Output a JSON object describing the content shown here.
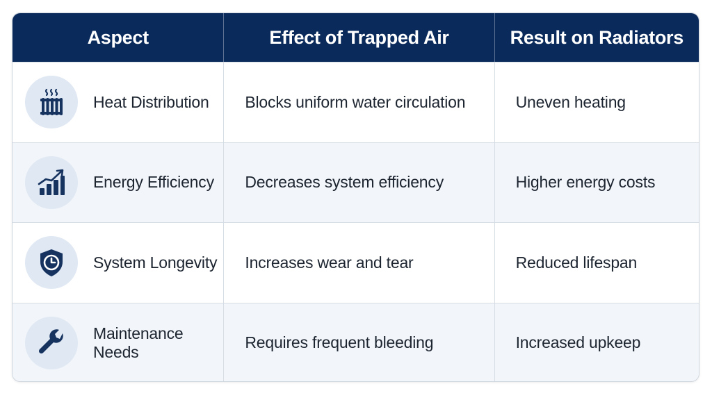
{
  "header": {
    "aspect": "Aspect",
    "effect": "Effect of Trapped Air",
    "result": "Result on Radiators"
  },
  "rows": [
    {
      "icon": "radiator-icon",
      "aspect": "Heat Distribution",
      "effect": "Blocks uniform water circulation",
      "result": "Uneven heating"
    },
    {
      "icon": "bar-chart-rising-icon",
      "aspect": "Energy Efficiency",
      "effect": "Decreases system efficiency",
      "result": "Higher energy costs"
    },
    {
      "icon": "shield-clock-icon",
      "aspect": "System Longevity",
      "effect": "Increases wear and tear",
      "result": "Reduced lifespan"
    },
    {
      "icon": "wrench-icon",
      "aspect": "Maintenance Needs",
      "effect": "Requires frequent bleeding",
      "result": "Increased upkeep"
    }
  ],
  "colors": {
    "header_bg": "#0b2a5c",
    "icon_bg": "#dfe8f3",
    "icon_fg": "#16325f",
    "alt_row_bg": "#f2f5f9"
  }
}
